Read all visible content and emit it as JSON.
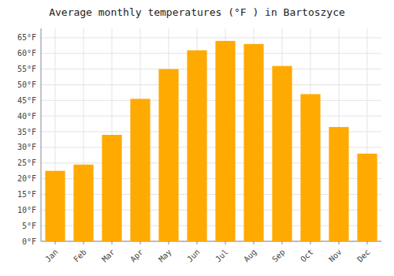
{
  "chart_data": {
    "type": "bar",
    "title": "Average monthly temperatures (°F ) in Bartoszyce",
    "categories": [
      "Jan",
      "Feb",
      "Mar",
      "Apr",
      "May",
      "Jun",
      "Jul",
      "Aug",
      "Sep",
      "Oct",
      "Nov",
      "Dec"
    ],
    "values": [
      22.5,
      24.5,
      34.0,
      45.5,
      55.0,
      61.0,
      64.0,
      63.0,
      56.0,
      47.0,
      36.5,
      28.0
    ],
    "color": "#FFAA00",
    "ylim": [
      0,
      68
    ],
    "yticks": [
      {
        "value": 0,
        "label": "0°F"
      },
      {
        "value": 5,
        "label": "5°F"
      },
      {
        "value": 10,
        "label": "10°F"
      },
      {
        "value": 15,
        "label": "15°F"
      },
      {
        "value": 20,
        "label": "20°F"
      },
      {
        "value": 25,
        "label": "25°F"
      },
      {
        "value": 30,
        "label": "30°F"
      },
      {
        "value": 35,
        "label": "35°F"
      },
      {
        "value": 40,
        "label": "40°F"
      },
      {
        "value": 45,
        "label": "45°F"
      },
      {
        "value": 50,
        "label": "50°F"
      },
      {
        "value": 55,
        "label": "55°F"
      },
      {
        "value": 60,
        "label": "60°F"
      },
      {
        "value": 65,
        "label": "65°F"
      }
    ],
    "grid": true
  }
}
